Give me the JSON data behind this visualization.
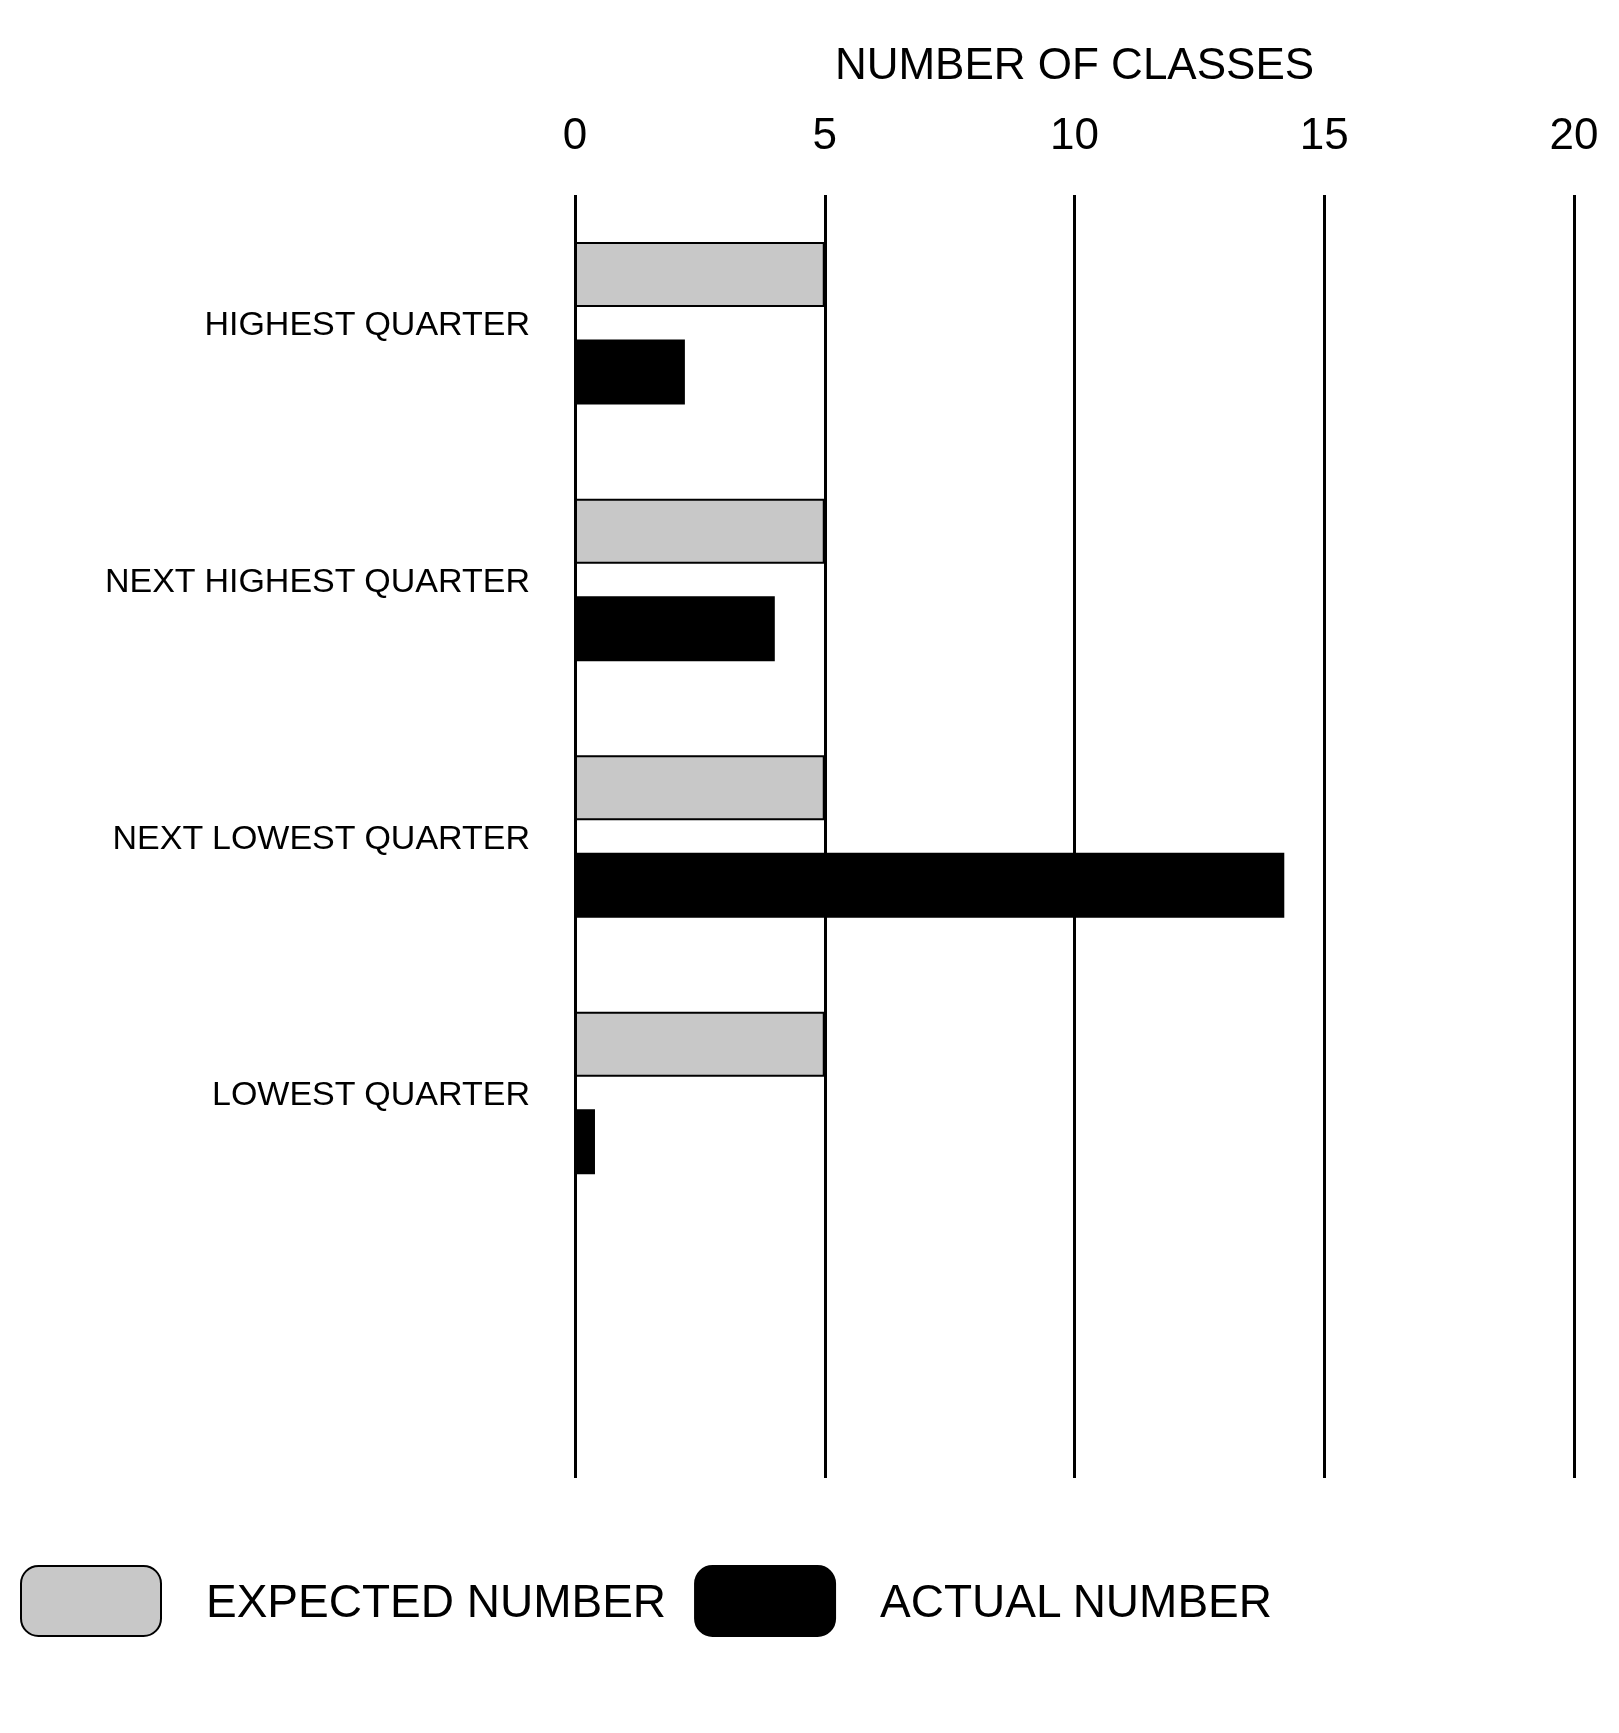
{
  "chart_data": {
    "type": "bar",
    "orientation": "horizontal",
    "xlabel": "NUMBER OF CLASSES",
    "categories": [
      "HIGHEST QUARTER",
      "NEXT HIGHEST QUARTER",
      "NEXT LOWEST QUARTER",
      "LOWEST QUARTER",
      null
    ],
    "series": [
      {
        "name": "EXPECTED NUMBER",
        "color": "#c8c8c8",
        "values": [
          5,
          5,
          5,
          5,
          null
        ]
      },
      {
        "name": "ACTUAL NUMBER",
        "color": "#000000",
        "values": [
          2.2,
          4,
          14.2,
          0.4,
          null
        ]
      }
    ],
    "xlim": [
      0,
      20
    ],
    "xticks": [
      0,
      5,
      10,
      15,
      20
    ],
    "grid": "x",
    "legend": "bottom left"
  }
}
